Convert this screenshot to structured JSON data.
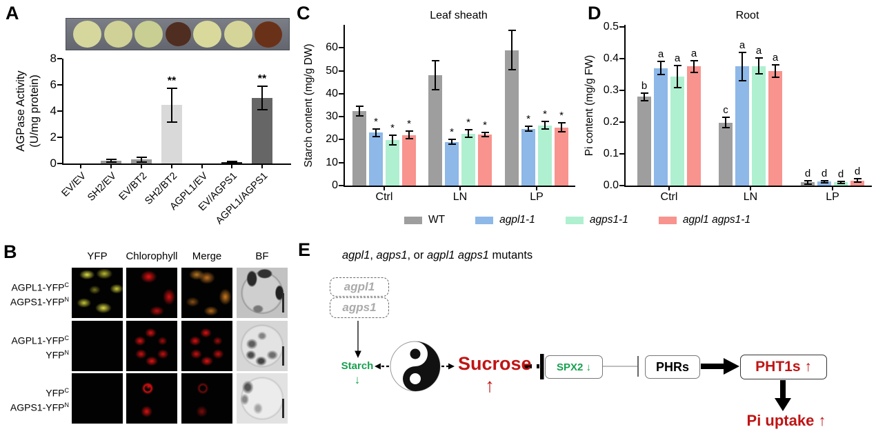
{
  "colors": {
    "wt_gray": "#9e9e9e",
    "agpl1_blue": "#8db8e8",
    "agps1_mint": "#aff0d0",
    "double_salmon": "#f8938e",
    "accent_red": "#c01414",
    "accent_green": "#17a04e",
    "light_bar": "#d9d9d9",
    "dark_bar": "#666666"
  },
  "panelA": {
    "label": "A",
    "plate_spots": [
      "#d6d79c",
      "#d0d196",
      "#c9ce92",
      "#4f2d20",
      "#d9d99c",
      "#d5d599",
      "#6a3119"
    ]
  },
  "panelB": {
    "label": "B",
    "col_headers": [
      "YFP",
      "Chlorophyll",
      "Merge",
      "BF"
    ],
    "rows": [
      {
        "lines": [
          {
            "text": "AGPL1-YFP",
            "sup": "C"
          },
          {
            "text": "AGPS1-YFP",
            "sup": "N"
          }
        ]
      },
      {
        "lines": [
          {
            "text": "AGPL1-YFP",
            "sup": "C"
          },
          {
            "text": "YFP",
            "sup": "N"
          }
        ]
      },
      {
        "lines": [
          {
            "text": "YFP",
            "sup": "C"
          },
          {
            "text": "AGPS1-YFP",
            "sup": "N"
          }
        ]
      }
    ]
  },
  "panelC": {
    "label": "C"
  },
  "panelD": {
    "label": "D"
  },
  "panelE": {
    "label": "E",
    "title_parts": [
      {
        "text": "agpl1",
        "italic": true
      },
      {
        "text": ", ",
        "italic": false
      },
      {
        "text": "agps1",
        "italic": true
      },
      {
        "text": ", or ",
        "italic": false
      },
      {
        "text": "agpl1 agps1",
        "italic": true
      },
      {
        "text": " mutants",
        "italic": false
      }
    ],
    "mutant_box1": "agpl1",
    "mutant_box2": "agps1",
    "starch_label": "Starch",
    "starch_arrow": "↓",
    "sucrose_label": "Sucrose",
    "sucrose_arrow": "↑",
    "spx2_label": "SPX2 ↓",
    "phrs_label": "PHRs",
    "pht1s_label": "PHT1s ↑",
    "pi_uptake_label": "Pi uptake ↑"
  },
  "legend": {
    "items": [
      {
        "label": "WT",
        "color": "#9e9e9e",
        "italic": false
      },
      {
        "label": "agpl1-1",
        "color": "#8db8e8",
        "italic": true
      },
      {
        "label": "agps1-1",
        "color": "#aff0d0",
        "italic": true
      },
      {
        "label": "agpl1 agps1-1",
        "color": "#f8938e",
        "italic": true
      }
    ]
  },
  "chart_data": [
    {
      "id": "chartA",
      "type": "bar",
      "panel": "A",
      "title": "",
      "ylabel_lines": [
        "AGPase Activity",
        "(U/mg protein)"
      ],
      "categories": [
        "EV/EV",
        "SH2/EV",
        "EV/BT2",
        "SH2/BT2",
        "AGPL1/EV",
        "EV/AGPS1",
        "AGPL1/AGPS1"
      ],
      "values": [
        0,
        0.2,
        0.3,
        4.45,
        0,
        0.1,
        5.0
      ],
      "errors": [
        0,
        0.1,
        0.18,
        1.27,
        0,
        0.05,
        0.9
      ],
      "sig": [
        "",
        "",
        "",
        "**",
        "",
        "",
        "**"
      ],
      "bar_colors": [
        "#9a9a9a",
        "#9a9a9a",
        "#9a9a9a",
        "#d9d9d9",
        "#9a9a9a",
        "#1f1f1f",
        "#666666"
      ],
      "ylim": [
        0,
        8
      ],
      "yticks": [
        0,
        2,
        4,
        6,
        8
      ],
      "grid": false
    },
    {
      "id": "chartC",
      "type": "grouped-bar",
      "panel": "C",
      "title": "Leaf sheath",
      "ylabel": "Starch content (mg/g DW)",
      "categories": [
        "Ctrl",
        "LN",
        "LP"
      ],
      "series": [
        {
          "name": "WT",
          "color": "#9e9e9e",
          "values": [
            32.5,
            48,
            59
          ],
          "errors": [
            2.2,
            6.3,
            8.6
          ],
          "sig": [
            "",
            "",
            ""
          ]
        },
        {
          "name": "agpl1-1",
          "color": "#8db8e8",
          "values": [
            23,
            19,
            24.7
          ],
          "errors": [
            1.6,
            1.0,
            1.1
          ],
          "sig": [
            "*",
            "*",
            "*"
          ]
        },
        {
          "name": "agps1-1",
          "color": "#aff0d0",
          "values": [
            19.8,
            22.6,
            26.2
          ],
          "errors": [
            2.1,
            1.7,
            1.6
          ],
          "sig": [
            "*",
            "*",
            "*"
          ]
        },
        {
          "name": "agpl1 agps1-1",
          "color": "#f8938e",
          "values": [
            22,
            22.3,
            25.3
          ],
          "errors": [
            1.6,
            0.9,
            1.9
          ],
          "sig": [
            "*",
            "*",
            "*"
          ]
        }
      ],
      "ylim": [
        0,
        70
      ],
      "yticks": [
        0,
        10,
        20,
        30,
        40,
        50,
        60
      ],
      "grid": false,
      "legend_position": "bottom"
    },
    {
      "id": "chartD",
      "type": "grouped-bar",
      "panel": "D",
      "title": "Root",
      "ylabel": "Pi content (mg/g FW)",
      "categories": [
        "Ctrl",
        "LN",
        "LP"
      ],
      "series": [
        {
          "name": "WT",
          "color": "#9e9e9e",
          "values": [
            0.28,
            0.198,
            0.01
          ],
          "errors": [
            0.012,
            0.016,
            0.005
          ],
          "sig": [
            "b",
            "c",
            "d"
          ]
        },
        {
          "name": "agpl1-1",
          "color": "#8db8e8",
          "values": [
            0.37,
            0.375,
            0.012
          ],
          "errors": [
            0.021,
            0.045,
            0.004
          ],
          "sig": [
            "a",
            "a",
            "d"
          ]
        },
        {
          "name": "agps1-1",
          "color": "#aff0d0",
          "values": [
            0.343,
            0.376,
            0.01
          ],
          "errors": [
            0.034,
            0.025,
            0.004
          ],
          "sig": [
            "a",
            "a",
            "d"
          ]
        },
        {
          "name": "agpl1 agps1-1",
          "color": "#f8938e",
          "values": [
            0.375,
            0.36,
            0.016
          ],
          "errors": [
            0.018,
            0.019,
            0.005
          ],
          "sig": [
            "a",
            "a",
            "d"
          ]
        }
      ],
      "ylim": [
        0,
        0.5
      ],
      "yticks": [
        0,
        0.1,
        0.2,
        0.3,
        0.4,
        0.5
      ],
      "ytick_decimals": 1,
      "grid": false,
      "legend_position": "bottom"
    }
  ]
}
